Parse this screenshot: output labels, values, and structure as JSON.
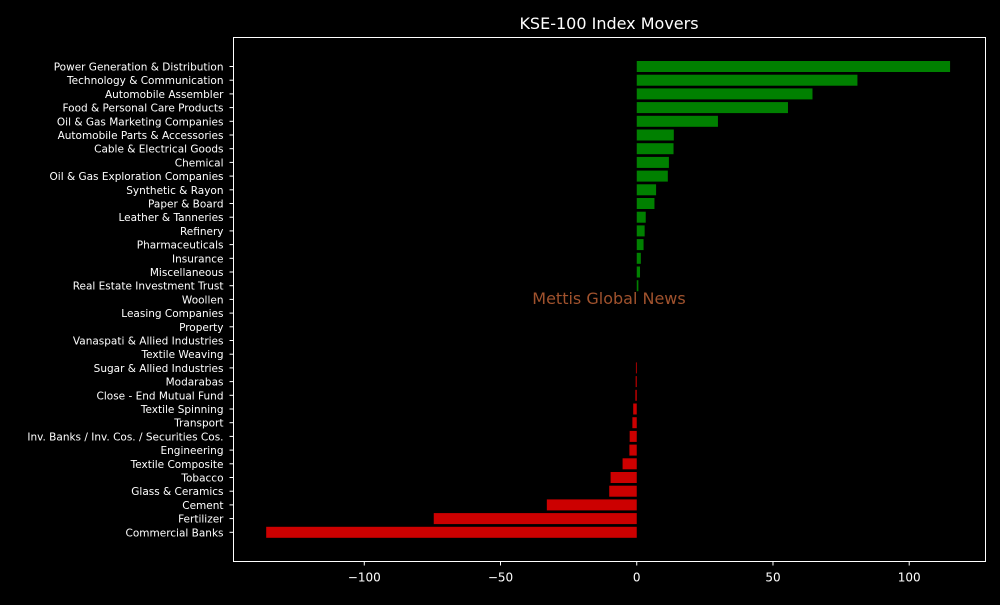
{
  "chart_data": {
    "type": "bar",
    "orientation": "horizontal",
    "title": "KSE-100 Index Movers",
    "watermark": "Mettis Global News",
    "xlabel": "",
    "ylabel": "",
    "xlim": [
      -148,
      128
    ],
    "xticks": [
      -100,
      -50,
      0,
      50,
      100
    ],
    "xtick_labels": [
      "−100",
      "−50",
      "0",
      "50",
      "100"
    ],
    "grid": false,
    "legend": "none",
    "colors": {
      "background": "#000000",
      "positive": "#008000",
      "negative": "#cc0000",
      "text": "#ffffff",
      "axes": "#ffffff",
      "watermark": "#a0522d"
    },
    "categories": [
      "Power Generation & Distribution",
      "Technology & Communication",
      "Automobile Assembler",
      "Food & Personal Care Products",
      "Oil & Gas Marketing Companies",
      "Automobile Parts & Accessories",
      "Cable & Electrical Goods",
      "Chemical",
      "Oil & Gas Exploration Companies",
      "Synthetic & Rayon",
      "Paper & Board",
      "Leather & Tanneries",
      "Refinery",
      "Pharmaceuticals",
      "Insurance",
      "Miscellaneous",
      "Real Estate Investment Trust",
      "Woollen",
      "Leasing Companies",
      "Property",
      "Vanaspati & Allied Industries",
      "Textile Weaving",
      "Sugar & Allied Industries",
      "Modarabas",
      "Close - End Mutual Fund",
      "Textile Spinning",
      "Transport",
      "Inv. Banks / Inv. Cos. / Securities Cos.",
      "Engineering",
      "Textile Composite",
      "Tobacco",
      "Glass & Ceramics",
      "Cement",
      "Fertilizer",
      "Commercial Banks"
    ],
    "values": [
      115,
      81,
      64.5,
      55.5,
      29.8,
      13.6,
      13.5,
      11.8,
      11.4,
      7.1,
      6.5,
      3.3,
      2.9,
      2.5,
      1.5,
      1.2,
      0.6,
      0,
      0,
      0,
      0,
      0,
      -0.3,
      -0.4,
      -0.5,
      -1.3,
      -1.6,
      -2.6,
      -2.7,
      -5.2,
      -9.6,
      -10.1,
      -33,
      -74.5,
      -136
    ]
  }
}
